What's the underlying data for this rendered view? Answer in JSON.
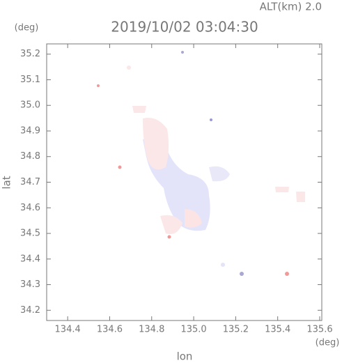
{
  "chart_data": {
    "type": "map",
    "title": "2019/10/02 03:04:30",
    "subtitle": "ALT(km) 2.0",
    "x_label": "lon",
    "x_unit": "(deg)",
    "y_label": "lat",
    "y_unit": "(deg)",
    "xlim": [
      134.3,
      135.61
    ],
    "ylim": [
      34.16,
      35.24
    ],
    "xticks": [
      134.4,
      134.6,
      134.8,
      {
        "value": 135,
        "label": "135.0"
      },
      135.2,
      135.4,
      135.6
    ],
    "yticks": [
      34.2,
      34.3,
      34.4,
      34.5,
      34.6,
      34.7,
      34.8,
      34.9,
      {
        "value": 35,
        "label": "35.0"
      },
      35.1,
      35.2
    ]
  }
}
